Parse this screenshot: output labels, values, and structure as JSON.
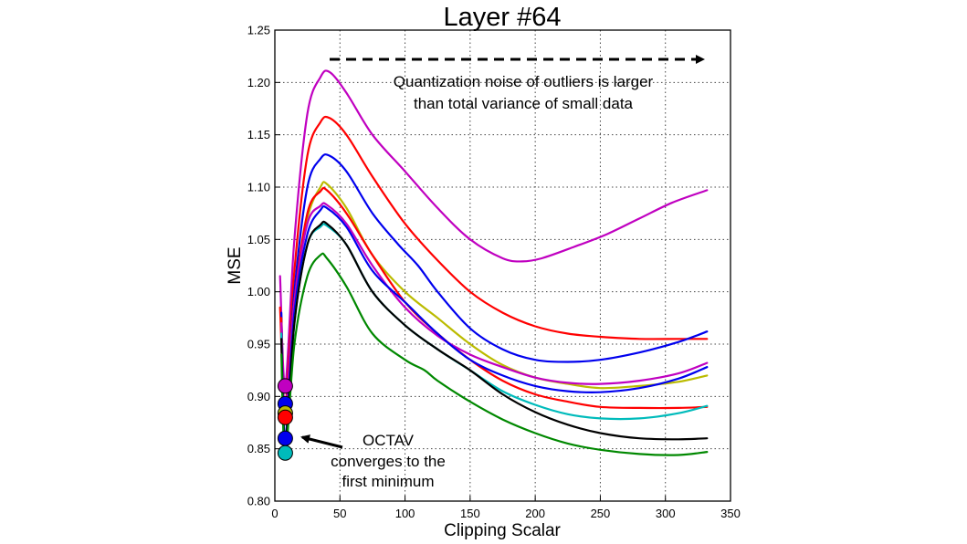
{
  "chart_data": {
    "type": "line",
    "title": "Layer #64",
    "xlabel": "Clipping Scalar",
    "ylabel": "MSE",
    "xlim": [
      0,
      350
    ],
    "ylim": [
      0.8,
      1.25
    ],
    "grid": true,
    "xticks": [
      0,
      50,
      100,
      150,
      200,
      250,
      300,
      350
    ],
    "xtick_labels": [
      "0",
      "50",
      "100",
      "150",
      "200",
      "250",
      "300",
      "350"
    ],
    "yticks": [
      0.8,
      0.85,
      0.9,
      0.95,
      1.0,
      1.05,
      1.1,
      1.15,
      1.2,
      1.25
    ],
    "ytick_labels": [
      "0.80",
      "0.85",
      "0.90",
      "0.95",
      "1.00",
      "1.05",
      "1.10",
      "1.15",
      "1.20",
      "1.25"
    ],
    "series": [
      {
        "name": "magenta",
        "color": "#c000c0",
        "points": [
          [
            4,
            1.015
          ],
          [
            8,
            0.91
          ],
          [
            15,
            1.05
          ],
          [
            25,
            1.17
          ],
          [
            35,
            1.205
          ],
          [
            42,
            1.21
          ],
          [
            55,
            1.19
          ],
          [
            75,
            1.15
          ],
          [
            100,
            1.115
          ],
          [
            125,
            1.08
          ],
          [
            150,
            1.05
          ],
          [
            175,
            1.032
          ],
          [
            190,
            1.029
          ],
          [
            205,
            1.032
          ],
          [
            230,
            1.043
          ],
          [
            255,
            1.055
          ],
          [
            280,
            1.07
          ],
          [
            305,
            1.085
          ],
          [
            332,
            1.097
          ]
        ]
      },
      {
        "name": "red-upper",
        "color": "#ff0000",
        "points": [
          [
            4,
            0.985
          ],
          [
            8,
            0.89
          ],
          [
            15,
            1.02
          ],
          [
            25,
            1.13
          ],
          [
            35,
            1.162
          ],
          [
            42,
            1.166
          ],
          [
            55,
            1.15
          ],
          [
            75,
            1.11
          ],
          [
            100,
            1.065
          ],
          [
            125,
            1.03
          ],
          [
            150,
            1.0
          ],
          [
            175,
            0.98
          ],
          [
            200,
            0.967
          ],
          [
            225,
            0.96
          ],
          [
            250,
            0.957
          ],
          [
            280,
            0.955
          ],
          [
            310,
            0.955
          ],
          [
            332,
            0.955
          ]
        ]
      },
      {
        "name": "blue-upper",
        "color": "#0000ee",
        "points": [
          [
            5,
            0.98
          ],
          [
            8,
            0.88
          ],
          [
            15,
            1.0
          ],
          [
            25,
            1.1
          ],
          [
            35,
            1.127
          ],
          [
            42,
            1.13
          ],
          [
            55,
            1.115
          ],
          [
            75,
            1.075
          ],
          [
            95,
            1.045
          ],
          [
            110,
            1.025
          ],
          [
            125,
            1.0
          ],
          [
            150,
            0.965
          ],
          [
            175,
            0.945
          ],
          [
            200,
            0.935
          ],
          [
            225,
            0.933
          ],
          [
            250,
            0.935
          ],
          [
            280,
            0.942
          ],
          [
            310,
            0.952
          ],
          [
            332,
            0.962
          ]
        ]
      },
      {
        "name": "yellow",
        "color": "#bbbb00",
        "points": [
          [
            5,
            0.97
          ],
          [
            8,
            0.88
          ],
          [
            15,
            0.99
          ],
          [
            25,
            1.07
          ],
          [
            35,
            1.1
          ],
          [
            40,
            1.103
          ],
          [
            55,
            1.08
          ],
          [
            75,
            1.035
          ],
          [
            100,
            1.0
          ],
          [
            125,
            0.975
          ],
          [
            150,
            0.95
          ],
          [
            175,
            0.93
          ],
          [
            200,
            0.918
          ],
          [
            225,
            0.912
          ],
          [
            250,
            0.908
          ],
          [
            280,
            0.91
          ],
          [
            310,
            0.914
          ],
          [
            332,
            0.92
          ]
        ]
      },
      {
        "name": "red-lower",
        "color": "#ff0000",
        "points": [
          [
            5,
            0.975
          ],
          [
            8,
            0.88
          ],
          [
            15,
            0.99
          ],
          [
            25,
            1.075
          ],
          [
            35,
            1.096
          ],
          [
            40,
            1.097
          ],
          [
            55,
            1.075
          ],
          [
            75,
            1.035
          ],
          [
            100,
            0.99
          ],
          [
            125,
            0.96
          ],
          [
            150,
            0.935
          ],
          [
            175,
            0.915
          ],
          [
            200,
            0.902
          ],
          [
            225,
            0.895
          ],
          [
            250,
            0.89
          ],
          [
            280,
            0.889
          ],
          [
            310,
            0.889
          ],
          [
            332,
            0.89
          ]
        ]
      },
      {
        "name": "magenta-lower",
        "color": "#c000c0",
        "points": [
          [
            5,
            0.97
          ],
          [
            8,
            0.885
          ],
          [
            15,
            0.99
          ],
          [
            25,
            1.065
          ],
          [
            35,
            1.082
          ],
          [
            40,
            1.083
          ],
          [
            55,
            1.065
          ],
          [
            75,
            1.025
          ],
          [
            100,
            0.985
          ],
          [
            125,
            0.958
          ],
          [
            150,
            0.94
          ],
          [
            175,
            0.928
          ],
          [
            200,
            0.918
          ],
          [
            225,
            0.913
          ],
          [
            250,
            0.912
          ],
          [
            280,
            0.915
          ],
          [
            310,
            0.922
          ],
          [
            332,
            0.932
          ]
        ]
      },
      {
        "name": "blue-lower",
        "color": "#0000ee",
        "points": [
          [
            5,
            0.96
          ],
          [
            8,
            0.86
          ],
          [
            15,
            0.98
          ],
          [
            25,
            1.055
          ],
          [
            35,
            1.078
          ],
          [
            40,
            1.08
          ],
          [
            55,
            1.062
          ],
          [
            75,
            1.02
          ],
          [
            100,
            0.99
          ],
          [
            125,
            0.96
          ],
          [
            150,
            0.935
          ],
          [
            175,
            0.92
          ],
          [
            200,
            0.91
          ],
          [
            225,
            0.905
          ],
          [
            250,
            0.904
          ],
          [
            280,
            0.908
          ],
          [
            310,
            0.917
          ],
          [
            332,
            0.928
          ]
        ]
      },
      {
        "name": "cyan",
        "color": "#00bbbb",
        "points": [
          [
            5,
            0.96
          ],
          [
            8,
            0.845
          ],
          [
            15,
            0.97
          ],
          [
            25,
            1.045
          ],
          [
            35,
            1.062
          ],
          [
            40,
            1.063
          ],
          [
            55,
            1.045
          ],
          [
            75,
            1.0
          ],
          [
            100,
            0.968
          ],
          [
            125,
            0.945
          ],
          [
            150,
            0.925
          ],
          [
            175,
            0.905
          ],
          [
            200,
            0.892
          ],
          [
            225,
            0.883
          ],
          [
            250,
            0.879
          ],
          [
            280,
            0.879
          ],
          [
            310,
            0.884
          ],
          [
            332,
            0.891
          ]
        ]
      },
      {
        "name": "black",
        "color": "#000000",
        "points": [
          [
            5,
            0.955
          ],
          [
            8,
            0.855
          ],
          [
            15,
            0.97
          ],
          [
            25,
            1.045
          ],
          [
            35,
            1.064
          ],
          [
            40,
            1.065
          ],
          [
            55,
            1.045
          ],
          [
            75,
            1.0
          ],
          [
            100,
            0.968
          ],
          [
            125,
            0.945
          ],
          [
            150,
            0.925
          ],
          [
            175,
            0.902
          ],
          [
            200,
            0.885
          ],
          [
            225,
            0.873
          ],
          [
            250,
            0.865
          ],
          [
            280,
            0.86
          ],
          [
            310,
            0.859
          ],
          [
            332,
            0.86
          ]
        ]
      },
      {
        "name": "green",
        "color": "#008800",
        "points": [
          [
            5,
            0.94
          ],
          [
            8,
            0.845
          ],
          [
            15,
            0.95
          ],
          [
            25,
            1.015
          ],
          [
            35,
            1.035
          ],
          [
            40,
            1.032
          ],
          [
            55,
            1.005
          ],
          [
            75,
            0.96
          ],
          [
            100,
            0.935
          ],
          [
            115,
            0.925
          ],
          [
            125,
            0.915
          ],
          [
            150,
            0.895
          ],
          [
            175,
            0.878
          ],
          [
            200,
            0.865
          ],
          [
            225,
            0.855
          ],
          [
            250,
            0.849
          ],
          [
            280,
            0.845
          ],
          [
            310,
            0.844
          ],
          [
            332,
            0.847
          ]
        ]
      }
    ],
    "markers": [
      {
        "x": 8,
        "y": 0.91,
        "color": "#c000c0"
      },
      {
        "x": 8,
        "y": 0.893,
        "color": "#0000ee"
      },
      {
        "x": 8,
        "y": 0.884,
        "color": "#bbbb00"
      },
      {
        "x": 8,
        "y": 0.88,
        "color": "#ff0000"
      },
      {
        "x": 8,
        "y": 0.86,
        "color": "#0000ee"
      },
      {
        "x": 8,
        "y": 0.846,
        "color": "#00bbbb"
      }
    ],
    "annotations": {
      "top_arrow": {
        "from": [
          42,
          1.215
        ],
        "to": [
          333,
          1.215
        ],
        "style": "dashed"
      },
      "top_text": [
        "Quantization noise of outliers is larger",
        "than total variance of small data"
      ],
      "octav_arrow": {
        "from": [
          52,
          0.852
        ],
        "to": [
          20,
          0.863
        ]
      },
      "octav_text": [
        "OCTAV",
        "converges to the",
        "first minimum"
      ]
    }
  }
}
